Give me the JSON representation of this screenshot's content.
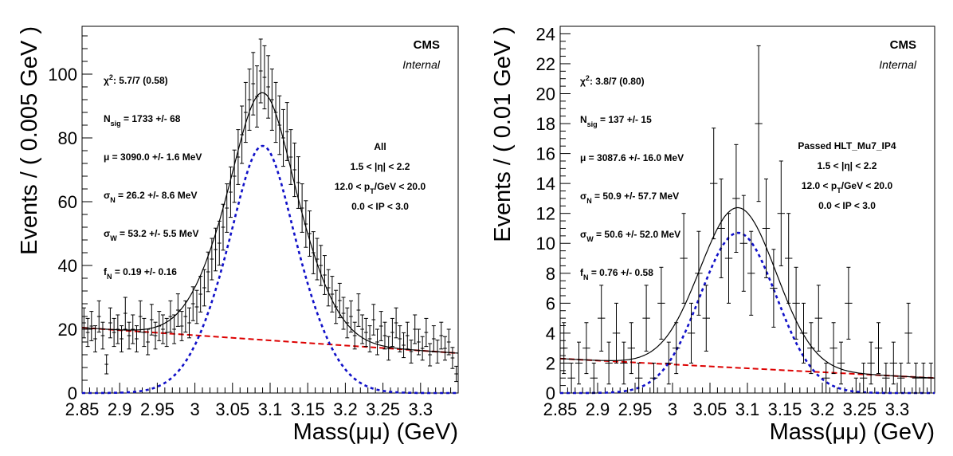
{
  "chart_data": [
    {
      "type": "scatter",
      "xlabel": "Mass(μμ) (GeV)",
      "ylabel": "Events / ( 0.005 GeV )",
      "xlim": [
        2.85,
        3.35
      ],
      "ylim": [
        0,
        115
      ],
      "xticks": [
        2.85,
        2.9,
        2.95,
        3.0,
        3.05,
        3.1,
        3.15,
        3.2,
        3.25,
        3.3
      ],
      "xtick_labels": [
        "2.85",
        "2.9",
        "2.95",
        "3",
        "3.05",
        "3.1",
        "3.15",
        "3.2",
        "3.25",
        "3.3"
      ],
      "yticks": [
        0,
        20,
        40,
        60,
        80,
        100
      ],
      "ytick_labels": [
        "0",
        "20",
        "40",
        "60",
        "80",
        "100"
      ],
      "bin_width": 0.005,
      "cms_label": "CMS",
      "internal_label": "Internal",
      "stats": [
        {
          "pre": "χ",
          "sup": "2",
          "text": ": 5.7/7 (0.58)"
        },
        {
          "pre": "N",
          "sub": "sig",
          "text": " = 1733 +/- 68"
        },
        {
          "pre": "μ",
          "text": " = 3090.0 +/- 1.6 MeV"
        },
        {
          "pre": "σ",
          "sub": "N",
          "text": " = 26.2 +/- 8.6 MeV"
        },
        {
          "pre": "σ",
          "sub": "W",
          "text": " = 53.2 +/- 5.5 MeV"
        },
        {
          "pre": "f",
          "sub": "N",
          "text": " = 0.19 +/- 0.16"
        }
      ],
      "selection": [
        {
          "text": "All"
        },
        {
          "text": "1.5 < |η| < 2.2"
        },
        {
          "pre": "12.0 < p",
          "sub": "T",
          "text": "/GeV < 20.0"
        },
        {
          "text": "0.0 < IP < 3.0"
        }
      ],
      "fit": {
        "signal_mean_gev": 3.09,
        "sigma_narrow_gev": 0.0262,
        "sigma_wide_gev": 0.0532,
        "frac_narrow": 0.19,
        "signal_peak_height": 77.5,
        "background_line": {
          "x0": 2.85,
          "y0": 20.5,
          "x1": 3.35,
          "y1": 12.5
        }
      },
      "data_points": {
        "x": [
          2.8525,
          2.8575,
          2.8625,
          2.8675,
          2.8725,
          2.8775,
          2.8825,
          2.8875,
          2.8925,
          2.8975,
          2.9025,
          2.9075,
          2.9125,
          2.9175,
          2.9225,
          2.9275,
          2.9325,
          2.9375,
          2.9425,
          2.9475,
          2.9525,
          2.9575,
          2.9625,
          2.9675,
          2.9725,
          2.9775,
          2.9825,
          2.9875,
          2.9925,
          2.9975,
          3.0025,
          3.0075,
          3.0125,
          3.0175,
          3.0225,
          3.0275,
          3.0325,
          3.0375,
          3.0425,
          3.0475,
          3.0525,
          3.0575,
          3.0625,
          3.0675,
          3.0725,
          3.0775,
          3.0825,
          3.0875,
          3.0925,
          3.0975,
          3.1025,
          3.1075,
          3.1125,
          3.1175,
          3.1225,
          3.1275,
          3.1325,
          3.1375,
          3.1425,
          3.1475,
          3.1525,
          3.1575,
          3.1625,
          3.1675,
          3.1725,
          3.1775,
          3.1825,
          3.1875,
          3.1925,
          3.1975,
          3.2025,
          3.2075,
          3.2125,
          3.2175,
          3.2225,
          3.2275,
          3.2325,
          3.2375,
          3.2425,
          3.2475,
          3.2525,
          3.2575,
          3.2625,
          3.2675,
          3.2725,
          3.2775,
          3.2825,
          3.2875,
          3.2925,
          3.2975,
          3.3025,
          3.3075,
          3.3125,
          3.3175,
          3.3225,
          3.3275,
          3.3325,
          3.3375,
          3.3425,
          3.3475
        ],
        "y": [
          22,
          19,
          21,
          17,
          24,
          18,
          9,
          22,
          19,
          20,
          17,
          25,
          18,
          20,
          17,
          24,
          19,
          16,
          23,
          18,
          21,
          20,
          19,
          24,
          20,
          26,
          21,
          24,
          22,
          28,
          27,
          31,
          33,
          38,
          42,
          45,
          47,
          52,
          58,
          63,
          68,
          74,
          81,
          88,
          92,
          97,
          93,
          101,
          99,
          96,
          92,
          88,
          84,
          80,
          82,
          74,
          70,
          66,
          58,
          53,
          50,
          44,
          42,
          40,
          37,
          33,
          31,
          27,
          29,
          25,
          22,
          24,
          18,
          26,
          20,
          19,
          17,
          23,
          16,
          21,
          18,
          14,
          19,
          22,
          17,
          15,
          18,
          13,
          20,
          16,
          14,
          19,
          12,
          17,
          13,
          18,
          14,
          16,
          11,
          6
        ],
        "err": [
          4.7,
          4.4,
          4.6,
          4.1,
          4.9,
          4.2,
          3.0,
          4.7,
          4.4,
          4.5,
          4.1,
          5.0,
          4.2,
          4.5,
          4.1,
          4.9,
          4.4,
          4.0,
          4.8,
          4.2,
          4.6,
          4.5,
          4.4,
          4.9,
          4.5,
          5.1,
          4.6,
          4.9,
          4.7,
          5.3,
          5.2,
          5.6,
          5.7,
          6.2,
          6.5,
          6.7,
          6.9,
          7.2,
          7.6,
          7.9,
          8.2,
          8.6,
          9.0,
          9.4,
          9.6,
          9.8,
          9.6,
          10.0,
          9.9,
          9.8,
          9.6,
          9.4,
          9.2,
          8.9,
          9.1,
          8.6,
          8.4,
          8.1,
          7.6,
          7.3,
          7.1,
          6.6,
          6.5,
          6.3,
          6.1,
          5.7,
          5.6,
          5.2,
          5.4,
          5.0,
          4.7,
          4.9,
          4.2,
          5.1,
          4.5,
          4.4,
          4.1,
          4.8,
          4.0,
          4.6,
          4.2,
          3.7,
          4.4,
          4.7,
          4.1,
          3.9,
          4.2,
          3.6,
          4.5,
          4.0,
          3.7,
          4.4,
          3.5,
          4.1,
          3.6,
          4.2,
          3.7,
          4.0,
          3.3,
          2.4
        ]
      }
    },
    {
      "type": "scatter",
      "xlabel": "Mass(μμ) (GeV)",
      "ylabel": "Events / ( 0.01 GeV )",
      "xlim": [
        2.85,
        3.35
      ],
      "ylim": [
        0,
        24.5
      ],
      "xticks": [
        2.85,
        2.9,
        2.95,
        3.0,
        3.05,
        3.1,
        3.15,
        3.2,
        3.25,
        3.3
      ],
      "xtick_labels": [
        "2.85",
        "2.9",
        "2.95",
        "3",
        "3.05",
        "3.1",
        "3.15",
        "3.2",
        "3.25",
        "3.3"
      ],
      "yticks": [
        0,
        2,
        4,
        6,
        8,
        10,
        12,
        14,
        16,
        18,
        20,
        22,
        24
      ],
      "ytick_labels": [
        "0",
        "2",
        "4",
        "6",
        "8",
        "10",
        "12",
        "14",
        "16",
        "18",
        "20",
        "22",
        "24"
      ],
      "bin_width": 0.01,
      "cms_label": "CMS",
      "internal_label": "Internal",
      "stats": [
        {
          "pre": "χ",
          "sup": "2",
          "text": ": 3.8/7 (0.80)"
        },
        {
          "pre": "N",
          "sub": "sig",
          "text": " = 137 +/- 15"
        },
        {
          "pre": "μ",
          "text": " = 3087.6 +/- 16.0 MeV"
        },
        {
          "pre": "σ",
          "sub": "N",
          "text": " = 50.9 +/- 57.7 MeV"
        },
        {
          "pre": "σ",
          "sub": "W",
          "text": " = 50.6 +/- 52.0 MeV"
        },
        {
          "pre": "f",
          "sub": "N",
          "text": " = 0.76 +/- 0.58"
        }
      ],
      "selection": [
        {
          "text": "Passed HLT_Mu7_IP4"
        },
        {
          "text": "1.5 < |η| < 2.2"
        },
        {
          "pre": "12.0 < p",
          "sub": "T",
          "text": "/GeV < 20.0"
        },
        {
          "text": "0.0 < IP < 3.0"
        }
      ],
      "fit": {
        "signal_mean_gev": 3.0876,
        "sigma_narrow_gev": 0.0509,
        "sigma_wide_gev": 0.0506,
        "frac_narrow": 0.76,
        "signal_peak_height": 10.7,
        "background_line": {
          "x0": 2.85,
          "y0": 2.3,
          "x1": 3.35,
          "y1": 1.0
        }
      },
      "data_points": {
        "x": [
          2.855,
          2.865,
          2.875,
          2.885,
          2.895,
          2.905,
          2.915,
          2.925,
          2.935,
          2.945,
          2.955,
          2.965,
          2.975,
          2.985,
          2.995,
          3.005,
          3.015,
          3.025,
          3.035,
          3.045,
          3.055,
          3.065,
          3.075,
          3.085,
          3.095,
          3.105,
          3.115,
          3.125,
          3.135,
          3.145,
          3.155,
          3.165,
          3.175,
          3.185,
          3.195,
          3.205,
          3.215,
          3.225,
          3.235,
          3.245,
          3.255,
          3.265,
          3.275,
          3.285,
          3.295,
          3.305,
          3.315,
          3.325,
          3.335,
          3.345
        ],
        "y": [
          3,
          1,
          2,
          3,
          1,
          5,
          2,
          4,
          2,
          3,
          1,
          5,
          1,
          6,
          2,
          3,
          9,
          4,
          8,
          5,
          14,
          11,
          9,
          13,
          10,
          8,
          18,
          11,
          7,
          12,
          9,
          6,
          4,
          3,
          5,
          1,
          3,
          2,
          6,
          0,
          1,
          2,
          3,
          1,
          2,
          1,
          4,
          1,
          1,
          1
        ],
        "err": [
          1.7,
          1.0,
          1.4,
          1.7,
          1.0,
          2.2,
          1.4,
          2.0,
          1.4,
          1.7,
          1.0,
          2.2,
          1.0,
          2.4,
          1.4,
          1.7,
          3.0,
          2.0,
          2.8,
          2.2,
          3.7,
          3.3,
          3.0,
          3.6,
          3.2,
          2.8,
          5.2,
          3.3,
          2.6,
          3.5,
          3.0,
          2.4,
          2.0,
          1.7,
          2.2,
          1.0,
          1.7,
          1.4,
          2.4,
          1.0,
          1.0,
          1.4,
          1.7,
          1.0,
          1.4,
          1.0,
          2.0,
          1.0,
          1.0,
          1.0
        ]
      }
    }
  ]
}
